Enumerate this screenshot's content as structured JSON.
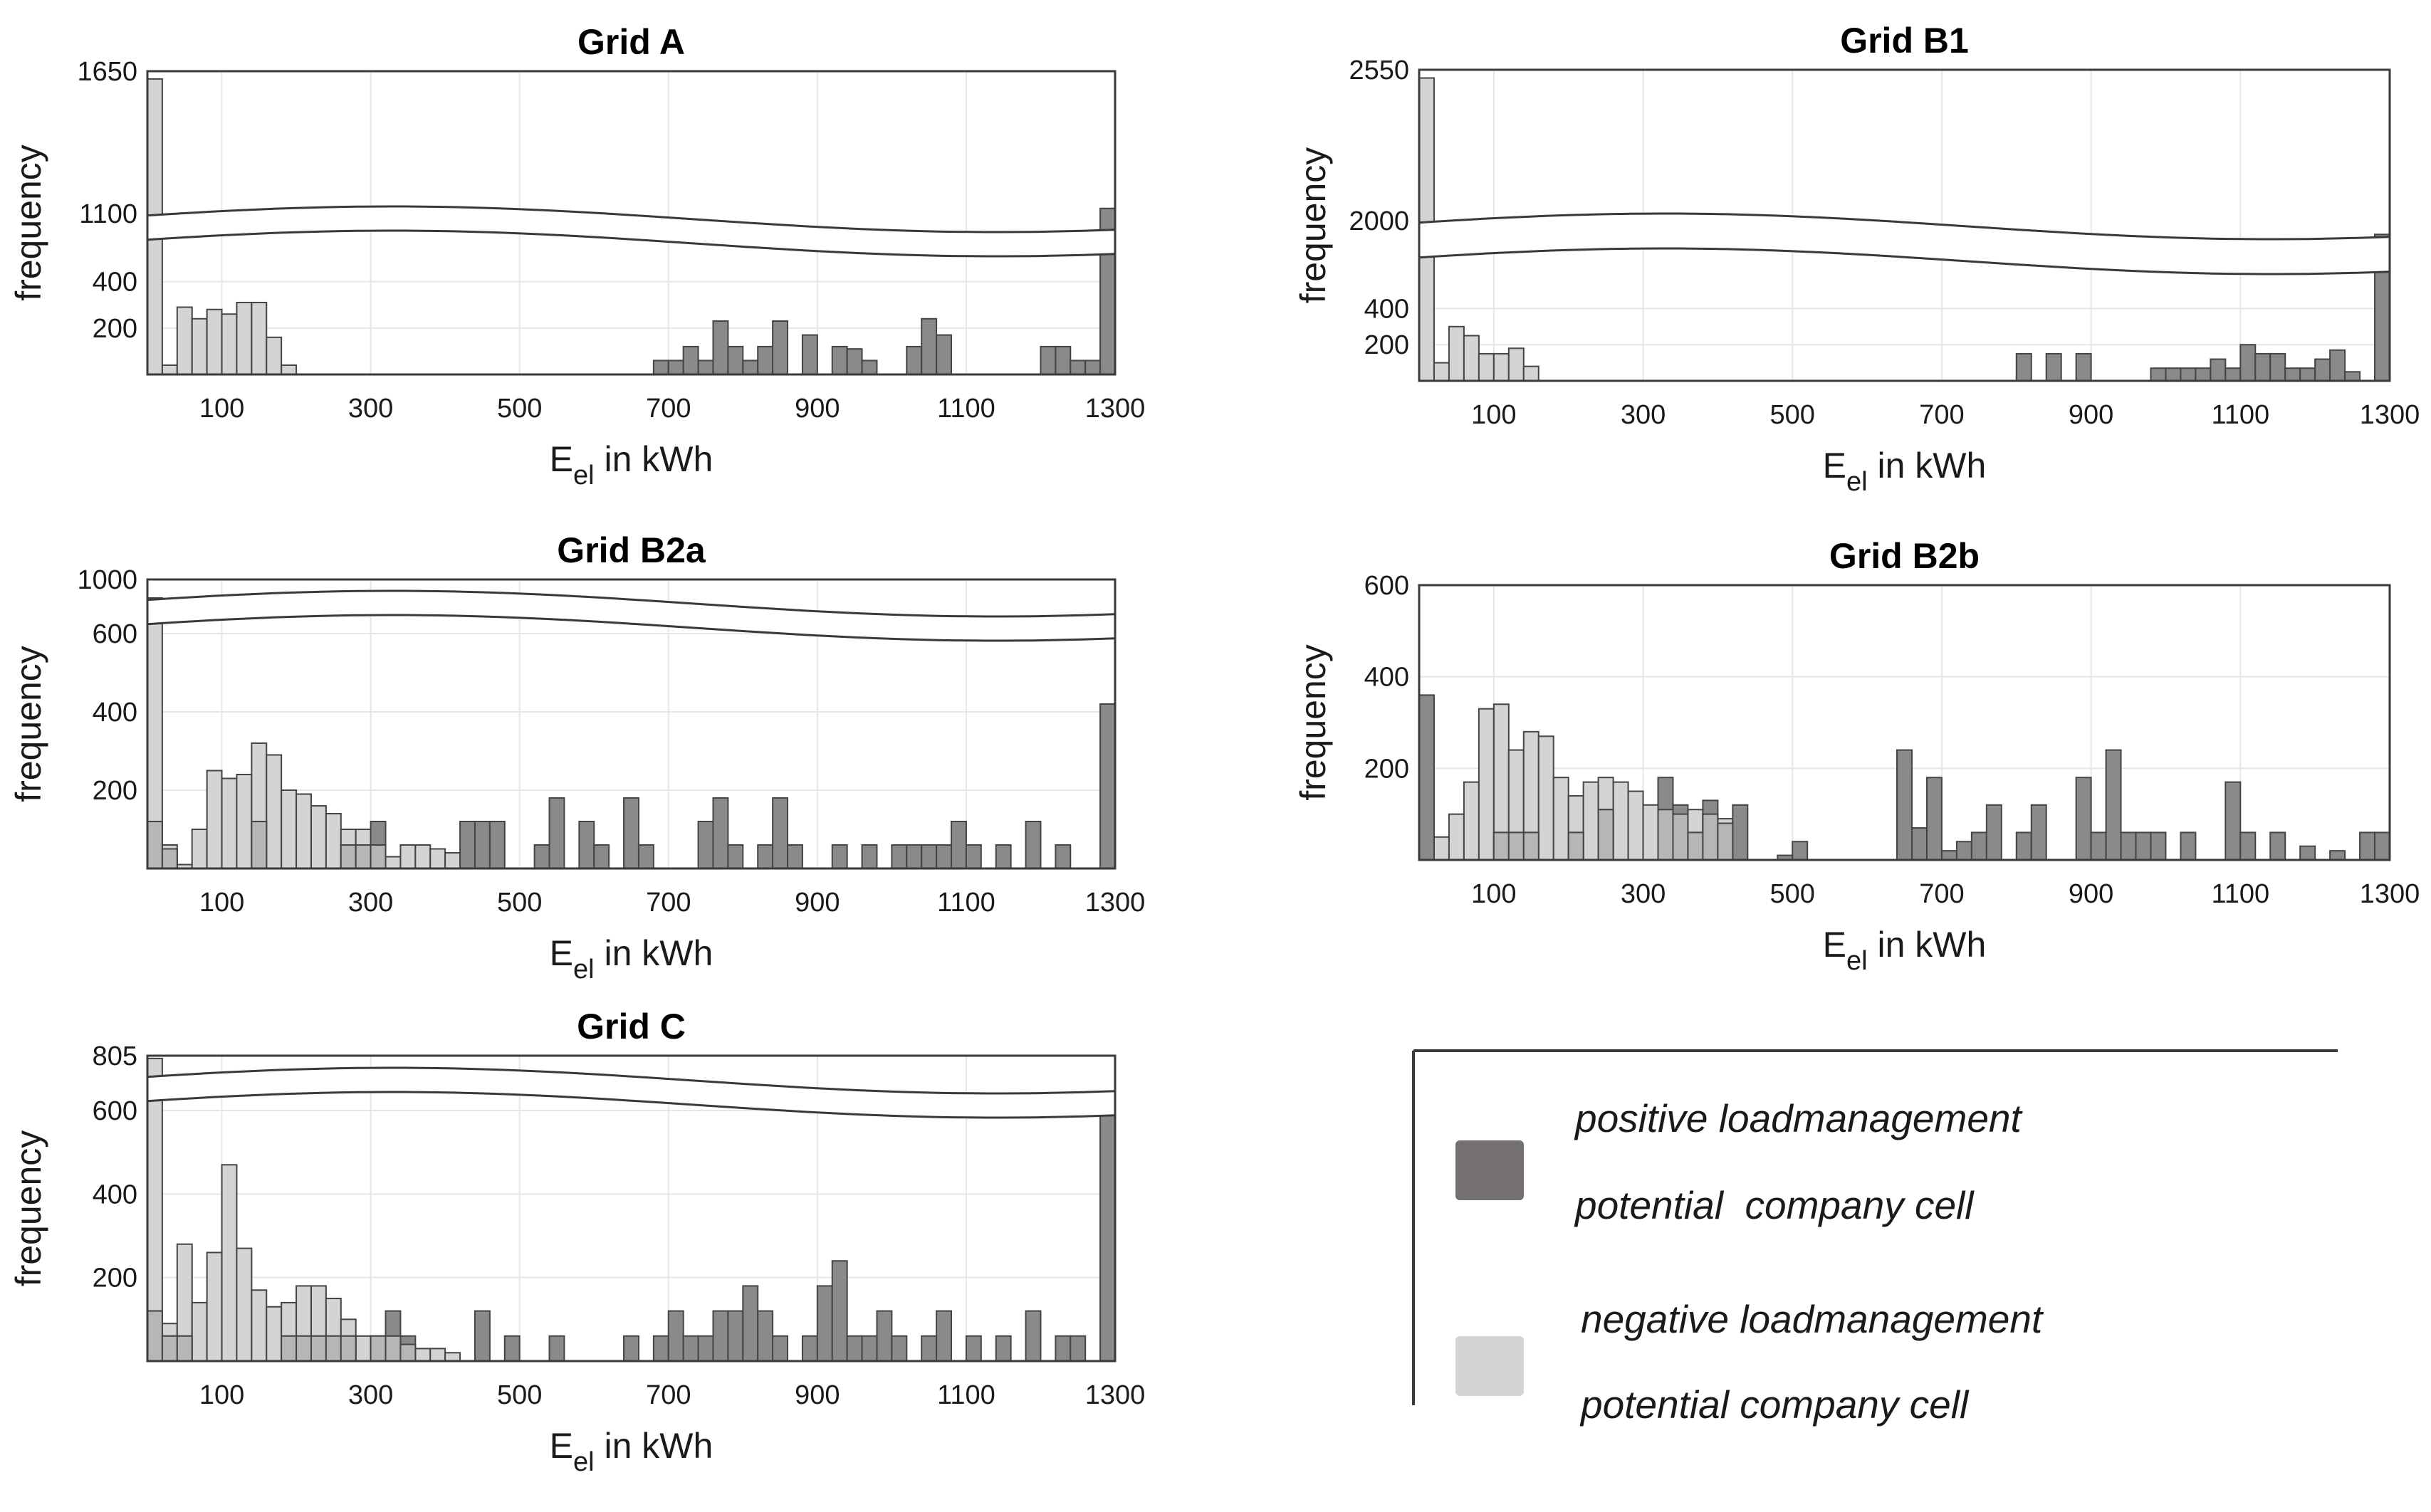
{
  "figure": {
    "legend": {
      "positive_line1": "positive loadmanagement",
      "positive_line2": "potential  company cell",
      "negative_line1": "negative loadmanagement",
      "negative_line2": "potential company cell"
    }
  },
  "colors": {
    "positive": "#8a8a8a",
    "negative": "#d4d4d4",
    "overlap": "#b6b6b6",
    "legend_positive": "#747070",
    "legend_negative": "#d4d4d4",
    "grid": "#e6e6e6",
    "axis": "#3a3a3a"
  },
  "chart_data": [
    {
      "id": "gridA",
      "type": "bar",
      "title": "Grid A",
      "xlabel_main": "E",
      "xlabel_sub": "el",
      "xlabel_rest": " in kWh",
      "ylabel": "frequency",
      "xlim": [
        0,
        1300
      ],
      "xticks": [
        100,
        300,
        500,
        700,
        900,
        1100,
        1300
      ],
      "yaxis_break": true,
      "yticks_lower": [
        200,
        400
      ],
      "ylim_lower": [
        0,
        540
      ],
      "yticks_upper": [
        1100,
        1650
      ],
      "ylim_upper": [
        1100,
        1650
      ],
      "bin_width": 20,
      "series": [
        {
          "name": "negative loadmanagement potential company cell",
          "role": "negative",
          "x": [
            0,
            20,
            40,
            60,
            80,
            100,
            120,
            140,
            160,
            180
          ],
          "values": [
            1620,
            40,
            290,
            240,
            280,
            260,
            310,
            310,
            160,
            40
          ]
        },
        {
          "name": "positive loadmanagement potential company cell",
          "role": "positive",
          "x": [
            680,
            700,
            720,
            740,
            760,
            780,
            800,
            820,
            840,
            860,
            880,
            900,
            920,
            940,
            960,
            980,
            1020,
            1040,
            1060,
            1080,
            1200,
            1220,
            1240,
            1260,
            1280
          ],
          "values": [
            60,
            60,
            120,
            60,
            230,
            120,
            60,
            120,
            230,
            0,
            170,
            0,
            120,
            110,
            60,
            0,
            120,
            240,
            170,
            0,
            120,
            120,
            60,
            60,
            1120
          ]
        }
      ]
    },
    {
      "id": "gridB1",
      "type": "bar",
      "title": "Grid B1",
      "xlabel_main": "E",
      "xlabel_sub": "el",
      "xlabel_rest": " in kWh",
      "ylabel": "frequency",
      "xlim": [
        0,
        1300
      ],
      "xticks": [
        100,
        300,
        500,
        700,
        900,
        1100,
        1300
      ],
      "yaxis_break": true,
      "yticks_lower": [
        200,
        400
      ],
      "ylim_lower": [
        0,
        630
      ],
      "yticks_upper": [
        2000,
        2550
      ],
      "ylim_upper": [
        2000,
        2550
      ],
      "bin_width": 20,
      "series": [
        {
          "name": "negative loadmanagement potential company cell",
          "role": "negative",
          "x": [
            0,
            20,
            40,
            60,
            80,
            100,
            120,
            140
          ],
          "values": [
            2520,
            100,
            300,
            250,
            150,
            150,
            180,
            80
          ]
        },
        {
          "name": "positive loadmanagement potential company cell",
          "role": "positive",
          "x": [
            800,
            840,
            880,
            980,
            1000,
            1020,
            1040,
            1060,
            1080,
            1100,
            1120,
            1140,
            1160,
            1180,
            1200,
            1220,
            1240,
            1260,
            1280
          ],
          "values": [
            150,
            150,
            150,
            70,
            70,
            70,
            70,
            120,
            70,
            200,
            150,
            150,
            70,
            70,
            120,
            170,
            50,
            0,
            1950
          ]
        }
      ]
    },
    {
      "id": "gridB2a",
      "type": "bar",
      "title": "Grid B2a",
      "xlabel_main": "E",
      "xlabel_sub": "el",
      "xlabel_rest": " in kWh",
      "ylabel": "frequency",
      "xlim": [
        0,
        1300
      ],
      "xticks": [
        100,
        300,
        500,
        700,
        900,
        1100,
        1300
      ],
      "yaxis_break": true,
      "yticks_lower": [
        200,
        400,
        600
      ],
      "ylim_lower": [
        0,
        600
      ],
      "yticks_upper": [
        1000
      ],
      "ylim_upper": [
        950,
        1000
      ],
      "bin_width": 20,
      "series": [
        {
          "name": "negative loadmanagement potential company cell",
          "role": "negative",
          "x": [
            0,
            20,
            40,
            60,
            80,
            100,
            120,
            140,
            160,
            180,
            200,
            220,
            240,
            260,
            280,
            300,
            320,
            340,
            360,
            380,
            400
          ],
          "values": [
            950,
            60,
            10,
            100,
            250,
            230,
            240,
            320,
            290,
            200,
            190,
            160,
            140,
            100,
            100,
            60,
            30,
            60,
            60,
            50,
            40
          ]
        },
        {
          "name": "positive loadmanagement potential company cell",
          "role": "positive",
          "x": [
            0,
            20,
            40,
            100,
            140,
            260,
            280,
            300,
            420,
            440,
            460,
            520,
            540,
            580,
            600,
            640,
            660,
            740,
            760,
            780,
            820,
            840,
            860,
            880,
            920,
            960,
            1000,
            1020,
            1040,
            1060,
            1080,
            1100,
            1140,
            1180,
            1220,
            1280
          ],
          "values": [
            120,
            50,
            0,
            0,
            120,
            60,
            60,
            120,
            120,
            120,
            120,
            60,
            180,
            120,
            60,
            180,
            60,
            120,
            180,
            60,
            60,
            180,
            60,
            0,
            60,
            60,
            60,
            60,
            60,
            60,
            120,
            60,
            60,
            120,
            60,
            420
          ]
        }
      ]
    },
    {
      "id": "gridB2b",
      "type": "bar",
      "title": "Grid B2b",
      "xlabel_main": "E",
      "xlabel_sub": "el",
      "xlabel_rest": " in kWh",
      "ylabel": "frequency",
      "xlim": [
        0,
        1300
      ],
      "xticks": [
        100,
        300,
        500,
        700,
        900,
        1100,
        1300
      ],
      "yaxis_break": false,
      "yticks": [
        200,
        400,
        600
      ],
      "ylim": [
        0,
        600
      ],
      "bin_width": 20,
      "series": [
        {
          "name": "negative loadmanagement potential company cell",
          "role": "negative",
          "x": [
            20,
            40,
            60,
            80,
            100,
            120,
            140,
            160,
            180,
            200,
            220,
            240,
            260,
            280,
            300,
            320,
            340,
            360,
            380,
            400
          ],
          "values": [
            50,
            100,
            170,
            330,
            340,
            240,
            280,
            270,
            180,
            140,
            170,
            180,
            170,
            150,
            120,
            110,
            100,
            110,
            100,
            90
          ]
        },
        {
          "name": "positive loadmanagement potential company cell",
          "role": "positive",
          "x": [
            0,
            100,
            120,
            140,
            200,
            240,
            320,
            340,
            360,
            380,
            400,
            420,
            480,
            500,
            640,
            660,
            680,
            700,
            720,
            740,
            760,
            800,
            820,
            880,
            900,
            920,
            940,
            960,
            980,
            1020,
            1080,
            1100,
            1140,
            1180,
            1220,
            1260,
            1280,
            1300
          ],
          "values": [
            360,
            60,
            60,
            60,
            60,
            110,
            180,
            120,
            60,
            130,
            80,
            120,
            10,
            40,
            240,
            70,
            180,
            20,
            40,
            60,
            120,
            60,
            120,
            180,
            60,
            240,
            60,
            60,
            60,
            60,
            170,
            60,
            60,
            30,
            20,
            60,
            60,
            60
          ]
        }
      ]
    },
    {
      "id": "gridC",
      "type": "bar",
      "title": "Grid C",
      "xlabel_main": "E",
      "xlabel_sub": "el",
      "xlabel_rest": " in kWh",
      "ylabel": "frequency",
      "xlim": [
        0,
        1300
      ],
      "xticks": [
        100,
        300,
        500,
        700,
        900,
        1100,
        1300
      ],
      "yaxis_break": true,
      "yticks_lower": [
        200,
        400,
        600
      ],
      "ylim_lower": [
        0,
        600
      ],
      "yticks_upper": [
        805
      ],
      "ylim_upper": [
        770,
        805
      ],
      "bin_width": 20,
      "series": [
        {
          "name": "negative loadmanagement potential company cell",
          "role": "negative",
          "x": [
            0,
            20,
            40,
            60,
            80,
            100,
            120,
            140,
            160,
            180,
            200,
            220,
            240,
            260,
            280,
            300,
            320,
            340,
            360,
            380,
            400
          ],
          "values": [
            800,
            90,
            280,
            140,
            260,
            470,
            270,
            170,
            130,
            140,
            180,
            180,
            150,
            100,
            60,
            60,
            60,
            40,
            30,
            30,
            20
          ]
        },
        {
          "name": "positive loadmanagement potential company cell",
          "role": "positive",
          "x": [
            0,
            20,
            40,
            180,
            200,
            220,
            240,
            260,
            300,
            320,
            340,
            440,
            480,
            540,
            640,
            680,
            700,
            720,
            740,
            760,
            780,
            800,
            820,
            840,
            860,
            880,
            900,
            920,
            940,
            960,
            980,
            1000,
            1040,
            1060,
            1100,
            1140,
            1180,
            1220,
            1240,
            1280
          ],
          "values": [
            120,
            60,
            60,
            60,
            60,
            60,
            60,
            60,
            60,
            120,
            60,
            120,
            60,
            60,
            60,
            60,
            120,
            60,
            60,
            120,
            120,
            180,
            120,
            60,
            0,
            60,
            180,
            240,
            60,
            60,
            120,
            60,
            60,
            120,
            60,
            60,
            120,
            60,
            60,
            600
          ]
        }
      ]
    }
  ]
}
